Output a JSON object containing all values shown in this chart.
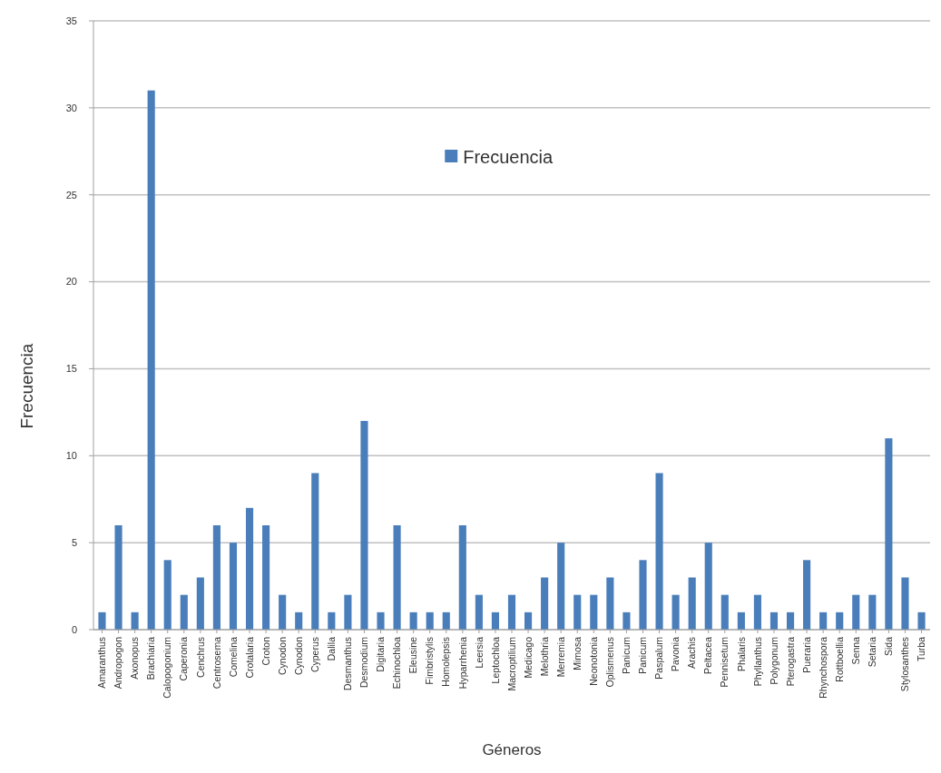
{
  "chart_data": {
    "type": "bar",
    "xlabel": "Géneros",
    "ylabel": "Frecuencia",
    "categories": [
      "Amaranthus",
      "Andropogon",
      "Axonopus",
      "Brachiaria",
      "Calopogonium",
      "Caperonia",
      "Cenchrus",
      "Centrosema",
      "Comelina",
      "Crotalaria",
      "Croton",
      "Cynodon",
      "Cynodon",
      "Cyperus",
      "Dalila",
      "Desmanthus",
      "Desmodium",
      "Digitaria",
      "Echinochloa",
      "Eleusine",
      "Fimbristylis",
      "Homolepsis",
      "Hyparrhenia",
      "Leersia",
      "Leptochloa",
      "Macroptilium",
      "Medicago",
      "Melothria",
      "Merremia",
      "Mimosa",
      "Neonotonia",
      "Oplismenus",
      "Panicum",
      "Panicum",
      "Paspalum",
      "Pavonia",
      "Arachis",
      "Peltacea",
      "Pennisetum",
      "Phalaris",
      "Phyllanthus",
      "Polygonum",
      "Pterogastra",
      "Pueraria",
      "Rhynchospora",
      "Rottboellia",
      "Senna",
      "Setaria",
      "Sida",
      "Stylosanthes",
      "Turba"
    ],
    "series": [
      {
        "name": "Frecuencia",
        "color": "#4a7ebb",
        "values": [
          1,
          6,
          1,
          31,
          4,
          2,
          3,
          6,
          5,
          7,
          6,
          2,
          1,
          9,
          1,
          2,
          12,
          1,
          6,
          1,
          1,
          1,
          6,
          2,
          1,
          2,
          1,
          3,
          5,
          2,
          2,
          3,
          1,
          4,
          9,
          2,
          3,
          5,
          2,
          1,
          2,
          1,
          1,
          4,
          1,
          1,
          2,
          2,
          11,
          3,
          1
        ]
      }
    ],
    "ylim": [
      0,
      35
    ],
    "yticks": [
      0,
      5,
      10,
      15,
      20,
      25,
      30,
      35
    ],
    "grid": "y",
    "legend": "top"
  }
}
